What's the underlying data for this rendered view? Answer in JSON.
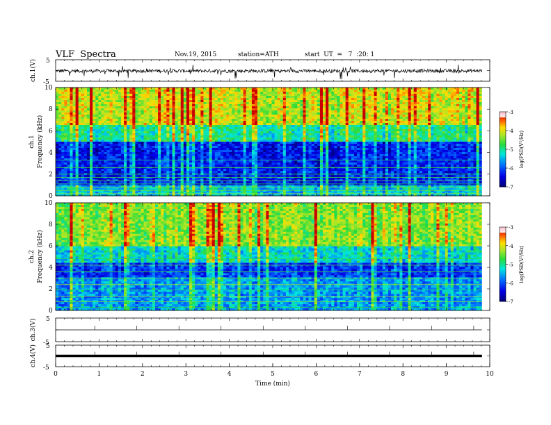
{
  "header": {
    "title": "VLF  Spectra",
    "date": "Nov.19, 2015",
    "station": "station=ATH",
    "start": "start  UT  =   7  :20: 1"
  },
  "chart_data": [
    {
      "type": "line",
      "panel": "ch1",
      "ylabel": "ch.1(V)",
      "yticks": [
        "5",
        "-5"
      ],
      "ylim": [
        -5,
        5
      ],
      "xlim": [
        0,
        10
      ],
      "data_end": 9.82,
      "baseline_level": -0.2,
      "color": "#000000"
    },
    {
      "type": "heatmap",
      "panel": "ch1-spectrogram",
      "ylabel": "ch.1\nFrequency (kHz)",
      "yticks": [
        "0",
        "2",
        "4",
        "6",
        "8",
        "10"
      ],
      "ylim": [
        0,
        10
      ],
      "xlim": [
        0,
        10
      ],
      "data_end": 9.82,
      "colorbar": {
        "label": "log(PSD(V²/Hz)",
        "ticks": [
          "-3",
          "-4",
          "-5",
          "-6",
          "-7"
        ],
        "range": [
          -7,
          -3
        ]
      }
    },
    {
      "type": "heatmap",
      "panel": "ch2-spectrogram",
      "ylabel": "ch.2\nFrequency (kHz)",
      "yticks": [
        "0",
        "2",
        "4",
        "6",
        "8",
        "10"
      ],
      "ylim": [
        0,
        10
      ],
      "xlim": [
        0,
        10
      ],
      "data_end": 9.82,
      "colorbar": {
        "label": "log(PSD(V²/Hz)",
        "ticks": [
          "-3",
          "-4",
          "-5",
          "-6",
          "-7"
        ],
        "range": [
          -7,
          -3
        ]
      }
    },
    {
      "type": "line",
      "panel": "ch3",
      "ylabel": "ch.3(V)",
      "yticks": [
        "5",
        "-5"
      ],
      "ylim": [
        -5,
        5
      ],
      "xlim": [
        0,
        10
      ],
      "data_end": 9.82,
      "baseline_level": 0.0,
      "color": "#000000"
    },
    {
      "type": "line",
      "panel": "ch4",
      "ylabel": "ch.4(V)",
      "yticks": [
        "5",
        "-5"
      ],
      "ylim": [
        -5,
        5
      ],
      "xlim": [
        0,
        10
      ],
      "data_end": 9.82,
      "baseline_level": 0.0,
      "color": "#000000"
    }
  ],
  "xaxis": {
    "label": "Time  (min)",
    "ticks": [
      "0",
      "1",
      "2",
      "3",
      "4",
      "5",
      "6",
      "7",
      "8",
      "9",
      "10"
    ]
  }
}
